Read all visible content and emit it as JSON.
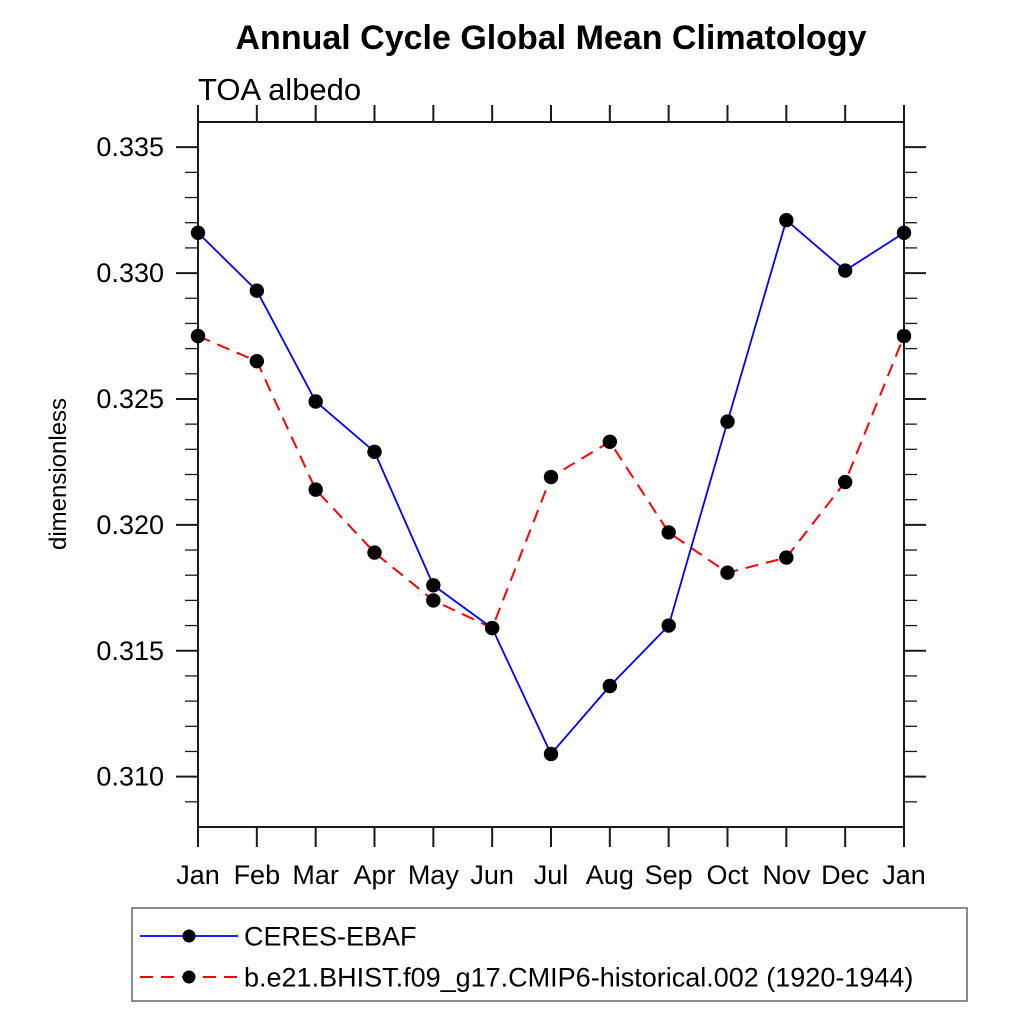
{
  "chart_data": {
    "type": "line",
    "title": "Annual Cycle Global Mean Climatology",
    "subtitle": "TOA albedo",
    "ylabel": "dimensionless",
    "xlabel": "",
    "categories": [
      "Jan",
      "Feb",
      "Mar",
      "Apr",
      "May",
      "Jun",
      "Jul",
      "Aug",
      "Sep",
      "Oct",
      "Nov",
      "Dec",
      "Jan"
    ],
    "series": [
      {
        "name": "CERES-EBAF",
        "color": "#0000ff",
        "style": "solid",
        "marker": "circle",
        "marker_color": "#000000",
        "values": [
          0.3316,
          0.3293,
          0.3249,
          0.3229,
          0.3176,
          0.3159,
          0.3109,
          0.3136,
          0.316,
          0.3241,
          0.3321,
          0.3301,
          0.3316
        ]
      },
      {
        "name": "b.e21.BHIST.f09_g17.CMIP6-historical.002 (1920-1944)",
        "color": "#ff0000",
        "style": "dashed",
        "marker": "circle",
        "marker_color": "#000000",
        "values": [
          0.3275,
          0.3265,
          0.3214,
          0.3189,
          0.317,
          0.3159,
          0.3219,
          0.3233,
          0.3197,
          0.3181,
          0.3187,
          0.3217,
          0.3275
        ]
      }
    ],
    "ylim": [
      0.308,
      0.336
    ],
    "yticks_major": [
      0.31,
      0.315,
      0.32,
      0.325,
      0.33,
      0.335
    ],
    "ytick_labels": [
      "0.310",
      "0.315",
      "0.320",
      "0.325",
      "0.330",
      "0.335"
    ],
    "ytick_minor_step": 0.001,
    "grid": false,
    "legend_position": "bottom-left"
  }
}
